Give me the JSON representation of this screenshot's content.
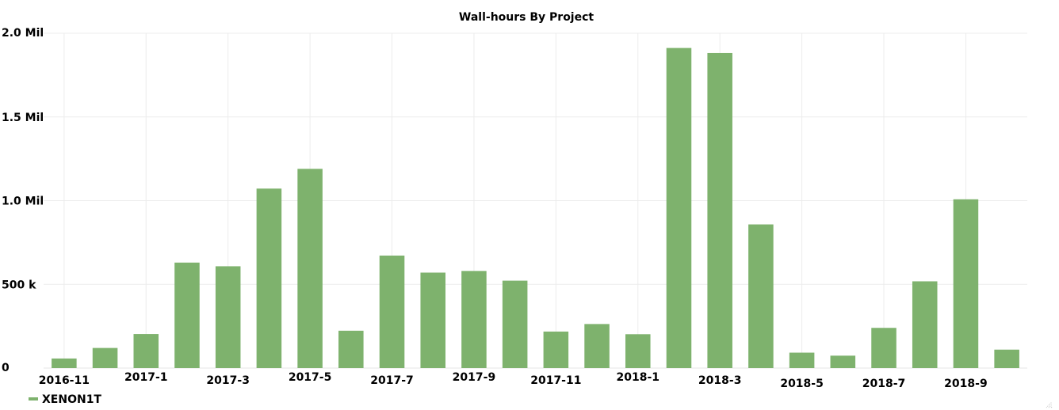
{
  "chart_data": {
    "type": "bar",
    "title": "Wall-hours By Project",
    "xlabel": "",
    "ylabel": "",
    "ylim": [
      0,
      2000000
    ],
    "y_ticks": [
      {
        "value": 0,
        "label": "0"
      },
      {
        "value": 500000,
        "label": "500 k"
      },
      {
        "value": 1000000,
        "label": "1.0 Mil"
      },
      {
        "value": 1500000,
        "label": "1.5 Mil"
      },
      {
        "value": 2000000,
        "label": "2.0 Mil"
      }
    ],
    "categories": [
      "2016-11",
      "2016-12",
      "2017-1",
      "2017-2",
      "2017-3",
      "2017-4",
      "2017-5",
      "2017-6",
      "2017-7",
      "2017-8",
      "2017-9",
      "2017-10",
      "2017-11",
      "2017-12",
      "2018-1",
      "2018-2",
      "2018-3",
      "2018-4",
      "2018-5",
      "2018-6",
      "2018-7",
      "2018-8",
      "2018-9",
      "2018-10"
    ],
    "x_tick_labels": [
      "2016-11",
      "2017-1",
      "2017-3",
      "2017-5",
      "2017-7",
      "2017-9",
      "2017-11",
      "2018-1",
      "2018-3",
      "2018-5",
      "2018-7",
      "2018-9"
    ],
    "series": [
      {
        "name": "XENON1T",
        "color": "#7eb26d",
        "values": [
          57000,
          120000,
          203000,
          630000,
          608000,
          1072000,
          1190000,
          223000,
          672000,
          570000,
          580000,
          522000,
          218000,
          263000,
          202000,
          1912000,
          1882000,
          858000,
          92000,
          74000,
          240000,
          518000,
          1008000,
          110000
        ]
      }
    ],
    "grid": true,
    "legend_position": "bottom-left"
  }
}
